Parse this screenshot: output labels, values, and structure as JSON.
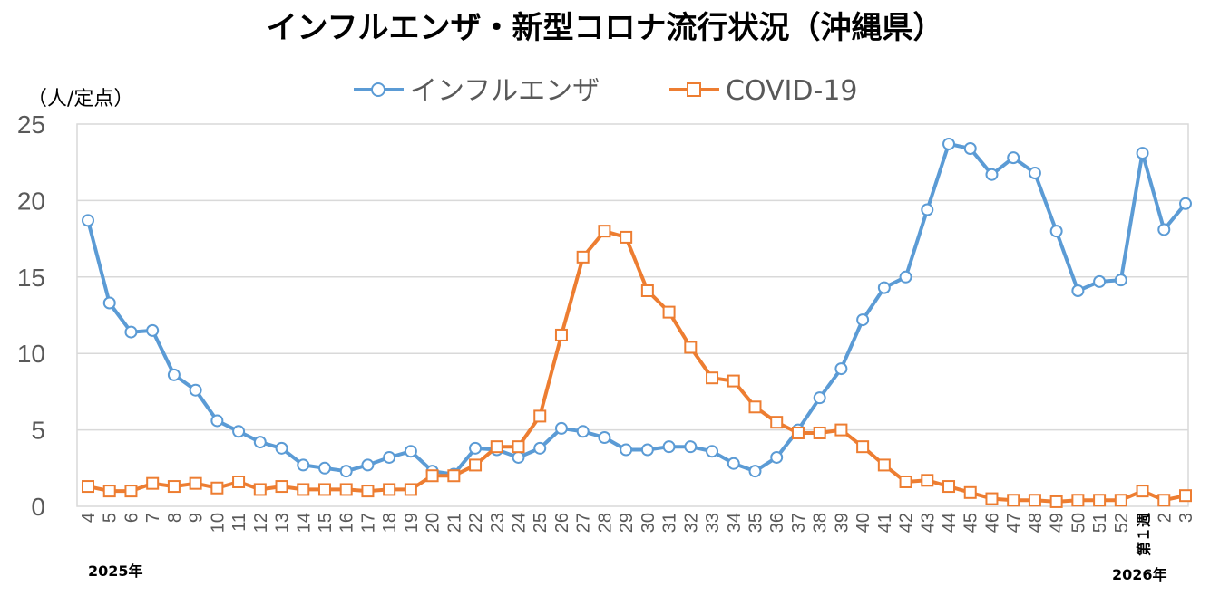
{
  "chart_data": {
    "type": "line",
    "title": "インフルエンザ・新型コロナ流行状況（沖縄県）",
    "ylabel": "（人/定点）",
    "xlabel": "",
    "ylim": [
      0,
      25
    ],
    "yticks": [
      "0",
      "5",
      "10",
      "15",
      "20",
      "25"
    ],
    "ytick_values": [
      0,
      5,
      10,
      15,
      20,
      25
    ],
    "grid": true,
    "legend_position": "top",
    "categories": [
      "4",
      "5",
      "6",
      "7",
      "8",
      "9",
      "10",
      "11",
      "12",
      "13",
      "14",
      "15",
      "16",
      "17",
      "18",
      "19",
      "20",
      "21",
      "22",
      "23",
      "24",
      "25",
      "26",
      "27",
      "28",
      "29",
      "30",
      "31",
      "32",
      "33",
      "34",
      "35",
      "36",
      "37",
      "38",
      "39",
      "40",
      "41",
      "42",
      "43",
      "44",
      "45",
      "46",
      "47",
      "48",
      "49",
      "50",
      "51",
      "52",
      "第１週",
      "2",
      "3"
    ],
    "year_labels": [
      "2025年",
      "2026年"
    ],
    "series": [
      {
        "name": "インフルエンザ",
        "color": "#5B9BD5",
        "marker": "circle",
        "values": [
          18.7,
          13.3,
          11.4,
          11.5,
          8.6,
          7.6,
          5.6,
          4.9,
          4.2,
          3.8,
          2.7,
          2.5,
          2.3,
          2.7,
          3.2,
          3.6,
          2.3,
          2.1,
          3.8,
          3.7,
          3.2,
          3.8,
          5.1,
          4.9,
          4.5,
          3.7,
          3.7,
          3.9,
          3.9,
          3.6,
          2.8,
          2.3,
          3.2,
          5.0,
          7.1,
          9.0,
          12.2,
          14.3,
          15.0,
          19.4,
          23.7,
          23.4,
          21.7,
          22.8,
          21.8,
          18.0,
          14.1,
          14.7,
          14.8,
          23.1,
          18.1,
          19.8
        ]
      },
      {
        "name": "COVID-19",
        "color": "#ED7D31",
        "marker": "square",
        "values": [
          1.3,
          1.0,
          1.0,
          1.5,
          1.3,
          1.5,
          1.2,
          1.6,
          1.1,
          1.3,
          1.1,
          1.1,
          1.1,
          1.0,
          1.1,
          1.1,
          2.0,
          2.0,
          2.7,
          3.9,
          3.9,
          5.9,
          11.2,
          16.3,
          18.0,
          17.6,
          14.1,
          12.7,
          10.4,
          8.4,
          8.2,
          6.5,
          5.5,
          4.8,
          4.8,
          5.0,
          3.9,
          2.7,
          1.6,
          1.7,
          1.3,
          0.9,
          0.5,
          0.4,
          0.4,
          0.3,
          0.4,
          0.4,
          0.4,
          1.0,
          0.4,
          0.7
        ]
      }
    ]
  }
}
